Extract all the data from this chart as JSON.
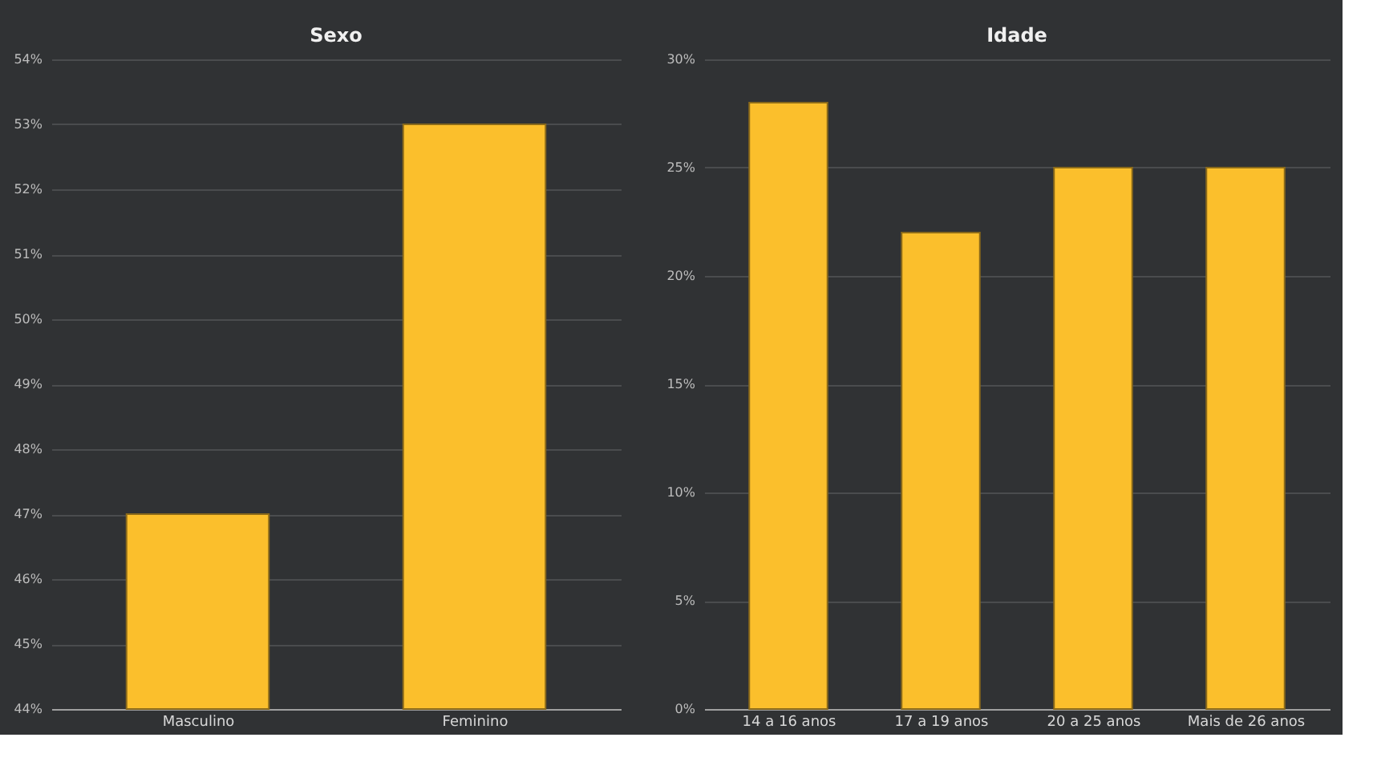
{
  "chart_data": [
    {
      "type": "bar",
      "title": "Sexo",
      "categories": [
        "Masculino",
        "Feminino"
      ],
      "values": [
        47,
        53
      ],
      "color": "#fbbf2c",
      "ylim": [
        44,
        54
      ],
      "yticks": [
        {
          "value": 44,
          "label": "44%"
        },
        {
          "value": 45,
          "label": "45%"
        },
        {
          "value": 46,
          "label": "46%"
        },
        {
          "value": 47,
          "label": "47%"
        },
        {
          "value": 48,
          "label": "48%"
        },
        {
          "value": 49,
          "label": "49%"
        },
        {
          "value": 50,
          "label": "50%"
        },
        {
          "value": 51,
          "label": "51%"
        },
        {
          "value": 52,
          "label": "52%"
        },
        {
          "value": 53,
          "label": "53%"
        },
        {
          "value": 54,
          "label": "54%"
        }
      ],
      "grid": "y"
    },
    {
      "type": "bar",
      "title": "Idade",
      "categories": [
        "14 a 16 anos",
        "17 a 19 anos",
        "20 a 25 anos",
        "Mais de 26 anos"
      ],
      "values": [
        28,
        22,
        25,
        25
      ],
      "color": "#fbbf2c",
      "ylim": [
        0,
        30
      ],
      "yticks": [
        {
          "value": 0,
          "label": "0%"
        },
        {
          "value": 5,
          "label": "5%"
        },
        {
          "value": 10,
          "label": "10%"
        },
        {
          "value": 15,
          "label": "15%"
        },
        {
          "value": 20,
          "label": "20%"
        },
        {
          "value": 25,
          "label": "25%"
        },
        {
          "value": 30,
          "label": "30%"
        }
      ],
      "grid": "y"
    }
  ]
}
